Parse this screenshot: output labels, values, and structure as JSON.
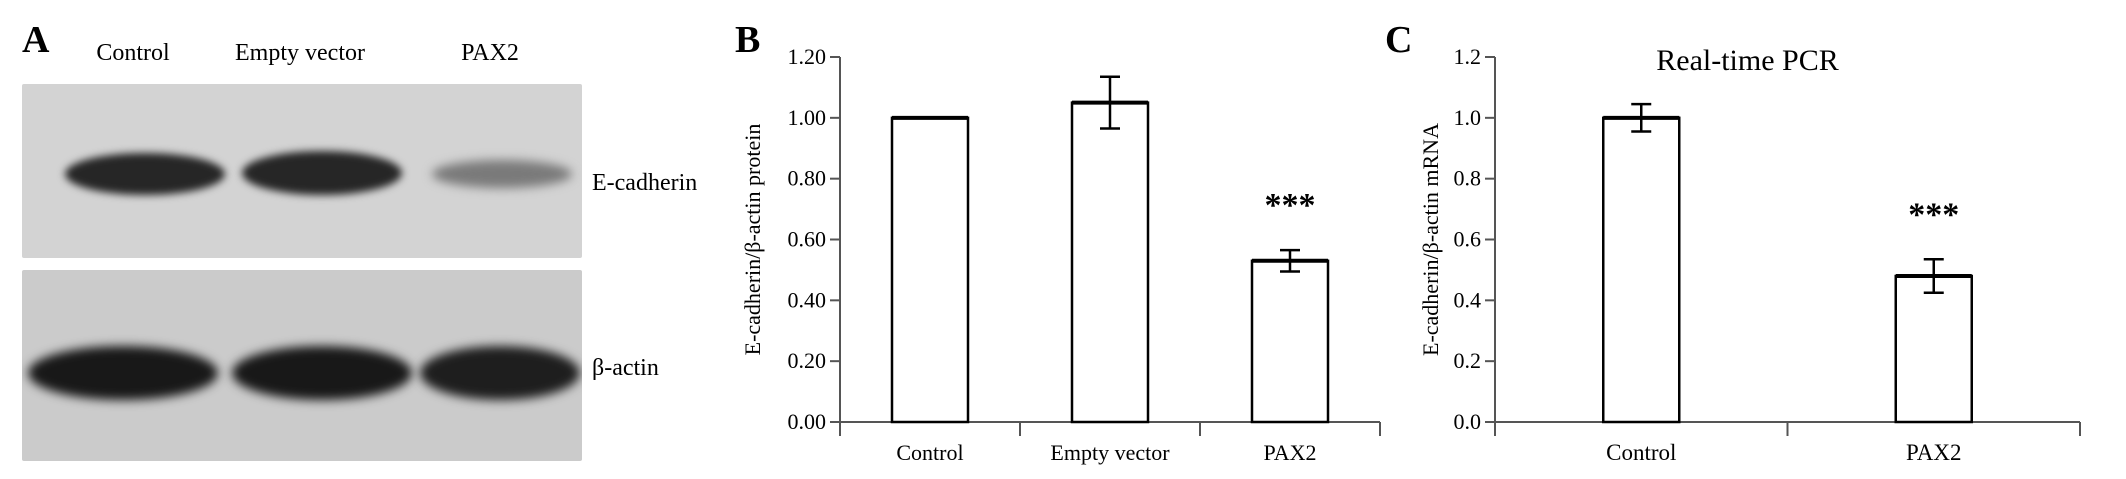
{
  "panel_a": {
    "letter": "A",
    "lanes": [
      "Control",
      "Empty vector",
      "PAX2"
    ],
    "blots": [
      {
        "label": "E-cadherin",
        "intensities": [
          1.0,
          1.0,
          0.45
        ]
      },
      {
        "label": "β-actin",
        "intensities": [
          1.0,
          1.0,
          1.0
        ]
      }
    ]
  },
  "panel_b": {
    "letter": "B"
  },
  "panel_c": {
    "letter": "C"
  },
  "chart_data": [
    {
      "type": "bar",
      "panel": "B",
      "title": "",
      "xlabel": "",
      "ylabel": "E-cadherin/β-actin protein",
      "categories": [
        "Control",
        "Empty vector",
        "PAX2"
      ],
      "values": [
        1.0,
        1.05,
        0.53
      ],
      "errors": [
        0.0,
        0.085,
        0.035
      ],
      "annotations": [
        "",
        "",
        "***"
      ],
      "ylim": [
        0,
        1.2
      ],
      "yticks": [
        0,
        0.2,
        0.4,
        0.6,
        0.8,
        1.0,
        1.2
      ],
      "yticklabels": [
        "0.00",
        "0.20",
        "0.40",
        "0.60",
        "0.80",
        "1.00",
        "1.20"
      ],
      "grid": false
    },
    {
      "type": "bar",
      "panel": "C",
      "title": "Real-time PCR",
      "xlabel": "",
      "ylabel": "E-cadherin/β-actin mRNA",
      "categories": [
        "Control",
        "PAX2"
      ],
      "values": [
        1.0,
        0.48
      ],
      "errors": [
        0.045,
        0.055
      ],
      "annotations": [
        "",
        "***"
      ],
      "ylim": [
        0,
        1.2
      ],
      "yticks": [
        0,
        0.2,
        0.4,
        0.6,
        0.8,
        1.0,
        1.2
      ],
      "yticklabels": [
        "0.0",
        "0.2",
        "0.4",
        "0.6",
        "0.8",
        "1.0",
        "1.2"
      ],
      "grid": false
    }
  ]
}
